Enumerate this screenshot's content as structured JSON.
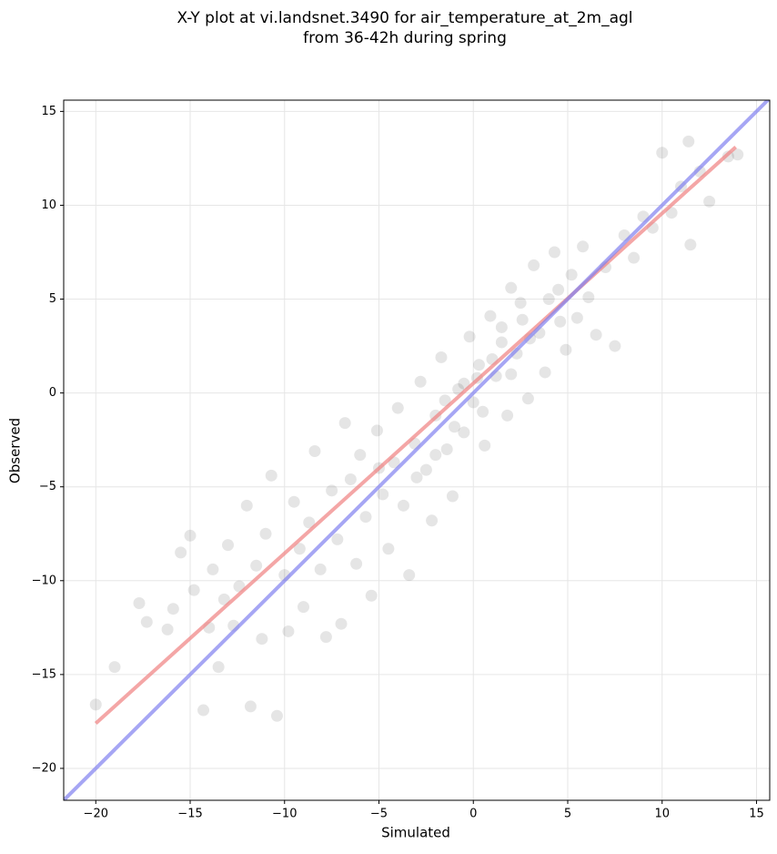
{
  "chart_data": {
    "type": "scatter",
    "title": [
      "X-Y plot at vi.landsnet.3490 for air_temperature_at_2m_agl",
      "from 36-42h during spring"
    ],
    "x_label": "Simulated",
    "y_label": "Observed",
    "xlim": [
      -21.7,
      15.7
    ],
    "ylim": [
      -21.7,
      15.6
    ],
    "xticks": [
      {
        "value": -20,
        "label": "−20"
      },
      {
        "value": -15,
        "label": "−15"
      },
      {
        "value": -10,
        "label": "−10"
      },
      {
        "value": -5,
        "label": "−5"
      },
      0,
      5,
      10,
      15
    ],
    "yticks": [
      {
        "value": -20,
        "label": "−20"
      },
      {
        "value": -15,
        "label": "−15"
      },
      {
        "value": -10,
        "label": "−10"
      },
      {
        "value": -5,
        "label": "−5"
      },
      0,
      5,
      10,
      15
    ],
    "grid": true,
    "series": [
      {
        "color": "#000000",
        "x": [
          -20,
          -19,
          -17.7,
          -17.3,
          -16.2,
          -15.9,
          -15.5,
          -15,
          -14.8,
          -14.3,
          -14,
          -13.8,
          -13.5,
          -13.2,
          -13,
          -12.7,
          -12.4,
          -12,
          -11.8,
          -11.5,
          -11.2,
          -11,
          -10.7,
          -10.4,
          -10,
          -9.8,
          -9.5,
          -9.2,
          -9,
          -8.7,
          -8.4,
          -8.1,
          -7.8,
          -7.5,
          -7.2,
          -7,
          -6.8,
          -6.5,
          -6.2,
          -6,
          -5.7,
          -5.4,
          -5.1,
          -4.8,
          -4.5,
          -4.2,
          -4,
          -3.7,
          -3.4,
          -3.1,
          -2.8,
          -2.5,
          -2.2,
          -2,
          -1.7,
          -1.4,
          -1.1,
          -0.8,
          -0.5,
          -0.2,
          0,
          0.3,
          0.6,
          0.9,
          1.2,
          1.5,
          1.8,
          2,
          2.3,
          2.6,
          2.9,
          3.2,
          3.5,
          3.8,
          4,
          4.3,
          4.6,
          4.9,
          5.2,
          5.5,
          5.8,
          6.1,
          6.5,
          7,
          7.5,
          8,
          8.5,
          9,
          9.5,
          10,
          10.5,
          11,
          11.5,
          12,
          12.5,
          13.5,
          14,
          11.4,
          1,
          -0.5,
          0.5,
          2.5,
          -3,
          -1,
          1.5,
          3,
          -2,
          0.2,
          4.5,
          -5,
          -1.5,
          2
        ],
        "y": [
          -16.6,
          -14.6,
          -11.2,
          -12.2,
          -12.6,
          -11.5,
          -8.5,
          -7.6,
          -10.5,
          -16.9,
          -12.5,
          -9.4,
          -14.6,
          -11,
          -8.1,
          -12.4,
          -10.3,
          -6,
          -16.7,
          -9.2,
          -13.1,
          -7.5,
          -4.4,
          -17.2,
          -9.7,
          -12.7,
          -5.8,
          -8.3,
          -11.4,
          -6.9,
          -3.1,
          -9.4,
          -13,
          -5.2,
          -7.8,
          -12.3,
          -1.6,
          -4.6,
          -9.1,
          -3.3,
          -6.6,
          -10.8,
          -2,
          -5.4,
          -8.3,
          -3.7,
          -0.8,
          -6,
          -9.7,
          -2.7,
          0.6,
          -4.1,
          -6.8,
          -1.2,
          1.9,
          -3,
          -5.5,
          0.2,
          -2.1,
          3,
          -0.5,
          1.5,
          -2.8,
          4.1,
          0.9,
          2.7,
          -1.2,
          5.6,
          2.1,
          3.9,
          -0.3,
          6.8,
          3.2,
          1.1,
          5,
          7.5,
          3.8,
          2.3,
          6.3,
          4,
          7.8,
          5.1,
          3.1,
          6.7,
          2.5,
          8.4,
          7.2,
          9.4,
          8.8,
          12.8,
          9.6,
          11,
          7.9,
          11.8,
          10.2,
          12.6,
          12.7,
          13.4,
          1.8,
          0.5,
          -1,
          4.8,
          -4.5,
          -1.8,
          3.5,
          2.9,
          -3.3,
          0.8,
          5.5,
          -4,
          -0.4,
          1
        ]
      }
    ],
    "lines": [
      {
        "color": "#f08080",
        "x": [
          -20,
          13.9
        ],
        "y": [
          -17.6,
          13.1
        ]
      },
      {
        "color": "#8080f0",
        "x": [
          -21.7,
          15.7
        ],
        "y": [
          -21.7,
          15.7
        ]
      }
    ]
  }
}
